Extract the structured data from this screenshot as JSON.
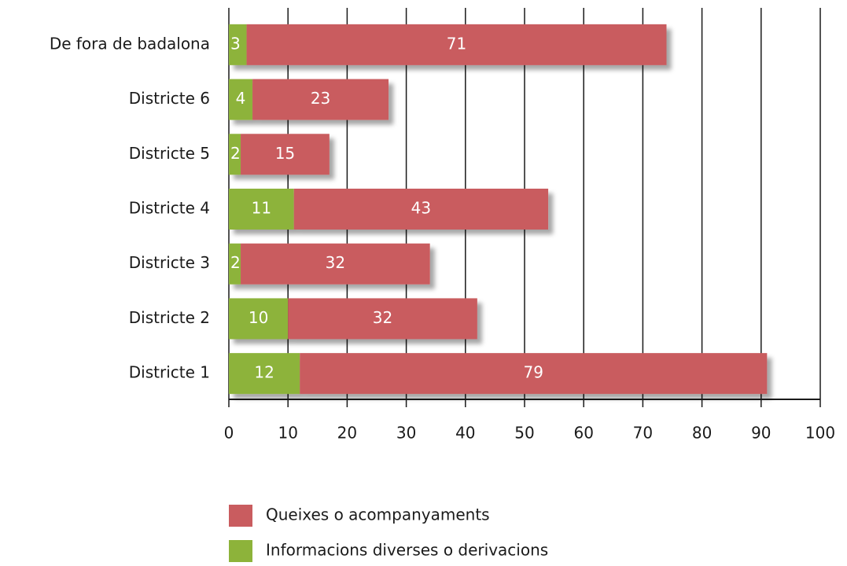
{
  "chart_data": {
    "type": "stacked-barh",
    "categories": [
      "De fora de badalona",
      "Districte 6",
      "Districte 5",
      "Districte 4",
      "Districte 3",
      "Districte 2",
      "Districte 1"
    ],
    "series": [
      {
        "name": "Informacions diverses o derivacions",
        "color": "#8db33a",
        "values": [
          3,
          4,
          2,
          11,
          2,
          10,
          12
        ]
      },
      {
        "name": "Queixes o acompanyaments",
        "color": "#c95c5f",
        "values": [
          71,
          23,
          15,
          43,
          32,
          32,
          79
        ]
      }
    ],
    "xlim": [
      0,
      100
    ],
    "xticks": [
      0,
      10,
      20,
      30,
      40,
      50,
      60,
      70,
      80,
      90,
      100
    ],
    "grid": true
  }
}
